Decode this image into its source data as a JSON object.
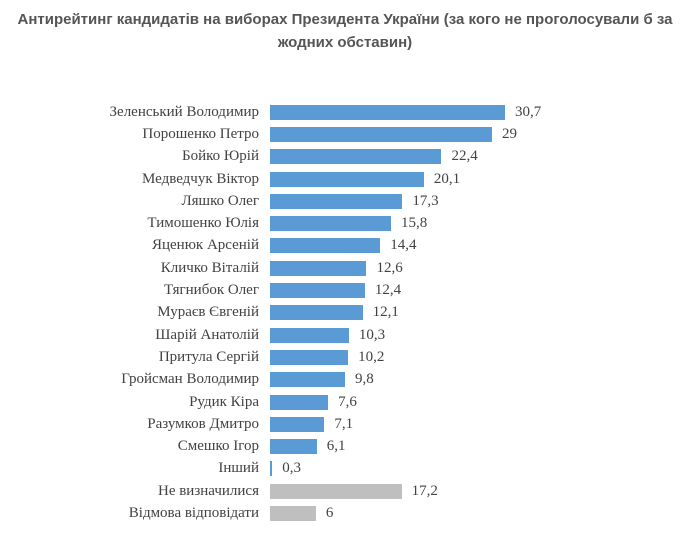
{
  "title": "Антирейтинг кандидатів на виборах Президента України (за кого не проголосували б за жодних обставин)",
  "colors": {
    "candidate_bar": "#5B9BD5",
    "neutral_bar": "#BFBFBF",
    "title_text": "#555555",
    "label_text": "#424242"
  },
  "chart_data": {
    "type": "bar",
    "orientation": "horizontal",
    "title": "Антирейтинг кандидатів на виборах Президента України (за кого не проголосували б за жодних обставин)",
    "xlabel": "",
    "ylabel": "",
    "grid": false,
    "legend": false,
    "value_labels_position": "end-of-bar",
    "decimal_separator": ",",
    "categories": [
      "Зеленський Володимир",
      "Порошенко Петро",
      "Бойко Юрій",
      "Медведчук Віктор",
      "Ляшко Олег",
      "Тимошенко Юлія",
      "Яценюк Арсеній",
      "Кличко Віталій",
      "Тягнибок Олег",
      "Мураєв Євгеній",
      "Шарій Анатолій",
      "Притула Сергій",
      "Гройсман Володимир",
      "Рудик Кіра",
      "Разумков Дмитро",
      "Смешко Ігор",
      "Інший",
      "Не визначилися",
      "Відмова відповідати"
    ],
    "values": [
      30.7,
      29,
      22.4,
      20.1,
      17.3,
      15.8,
      14.4,
      12.6,
      12.4,
      12.1,
      10.3,
      10.2,
      9.8,
      7.6,
      7.1,
      6.1,
      0.3,
      17.2,
      6
    ],
    "value_labels": [
      "30,7",
      "29",
      "22,4",
      "20,1",
      "17,3",
      "15,8",
      "14,4",
      "12,6",
      "12,4",
      "12,1",
      "10,3",
      "10,2",
      "9,8",
      "7,6",
      "7,1",
      "6,1",
      "0,3",
      "17,2",
      "6"
    ],
    "bar_colors": [
      "#5B9BD5",
      "#5B9BD5",
      "#5B9BD5",
      "#5B9BD5",
      "#5B9BD5",
      "#5B9BD5",
      "#5B9BD5",
      "#5B9BD5",
      "#5B9BD5",
      "#5B9BD5",
      "#5B9BD5",
      "#5B9BD5",
      "#5B9BD5",
      "#5B9BD5",
      "#5B9BD5",
      "#5B9BD5",
      "#5B9BD5",
      "#BFBFBF",
      "#BFBFBF"
    ]
  }
}
